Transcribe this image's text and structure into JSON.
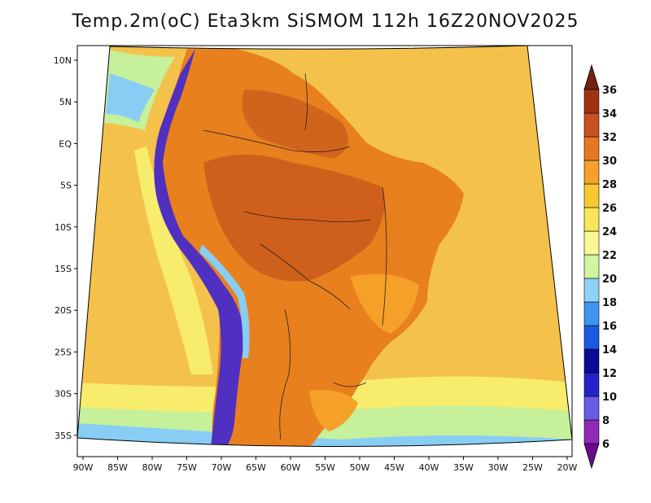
{
  "title": "Temp.2m(oC) Eta3km SiSMOM 112h 16Z20NOV2025",
  "lat_ticks": [
    "10N",
    "5N",
    "EQ",
    "5S",
    "10S",
    "15S",
    "20S",
    "25S",
    "30S",
    "35S"
  ],
  "lon_ticks": [
    "90W",
    "85W",
    "80W",
    "75W",
    "70W",
    "65W",
    "60W",
    "55W",
    "50W",
    "45W",
    "40W",
    "35W",
    "30W",
    "25W",
    "20W"
  ],
  "colorbar": {
    "labels": [
      "6",
      "8",
      "10",
      "12",
      "14",
      "16",
      "18",
      "20",
      "22",
      "24",
      "26",
      "28",
      "30",
      "32",
      "34",
      "36"
    ],
    "colors": [
      "#6a0a8c",
      "#8e2ab4",
      "#6a5ae8",
      "#2222c8",
      "#0a0a96",
      "#1a5ae0",
      "#3c96f0",
      "#8ed2f8",
      "#d2f5a0",
      "#f8f896",
      "#fae65a",
      "#f8c832",
      "#f5a028",
      "#e8781e",
      "#c8501e",
      "#a03214",
      "#70230e"
    ]
  },
  "regions": {
    "ocean": "#f4c24a",
    "ocean_cool": "#f8ec6c",
    "ocean_cooler": "#c6f09a",
    "ocean_cold": "#88cdf4",
    "land_hot": "#e8801e",
    "land_hotter": "#c8581c",
    "andes": "#5030c0"
  }
}
